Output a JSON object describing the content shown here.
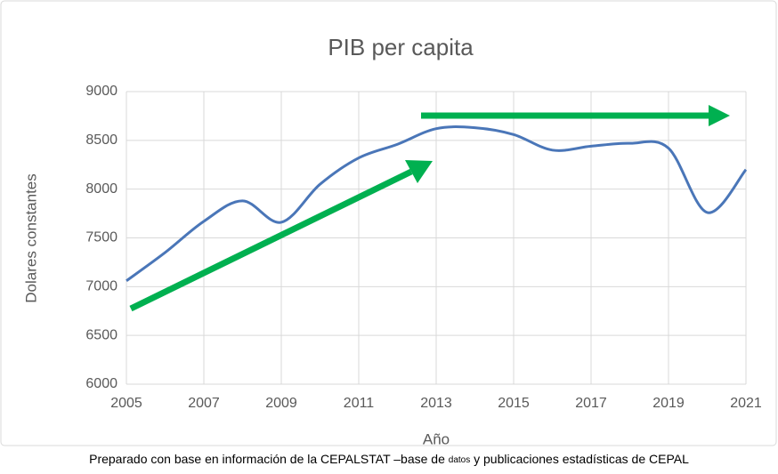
{
  "chart_data": {
    "type": "line",
    "title": "PIB per capita",
    "x_label": "Año",
    "y_label": "Dolares constantes",
    "x": [
      2005,
      2006,
      2007,
      2008,
      2009,
      2010,
      2011,
      2012,
      2013,
      2014,
      2015,
      2016,
      2017,
      2018,
      2019,
      2020,
      2021
    ],
    "values": [
      7060,
      7350,
      7670,
      7880,
      7660,
      8050,
      8320,
      8460,
      8620,
      8630,
      8560,
      8400,
      8440,
      8470,
      8420,
      7760,
      8200
    ],
    "color": "#4a76b8",
    "smooth": true,
    "xlim": [
      2005,
      2021
    ],
    "xticks": [
      2005,
      2007,
      2009,
      2011,
      2013,
      2015,
      2017,
      2019,
      2021
    ],
    "ylim": [
      6000,
      9000
    ],
    "yticks": [
      6000,
      6500,
      7000,
      7500,
      8000,
      8500,
      9000
    ],
    "grid": true,
    "source": [
      "Preparado con base en información de la CEPALSTAT –base de ",
      "datos",
      " y publicaciones estadísticas de CEPAL"
    ]
  }
}
